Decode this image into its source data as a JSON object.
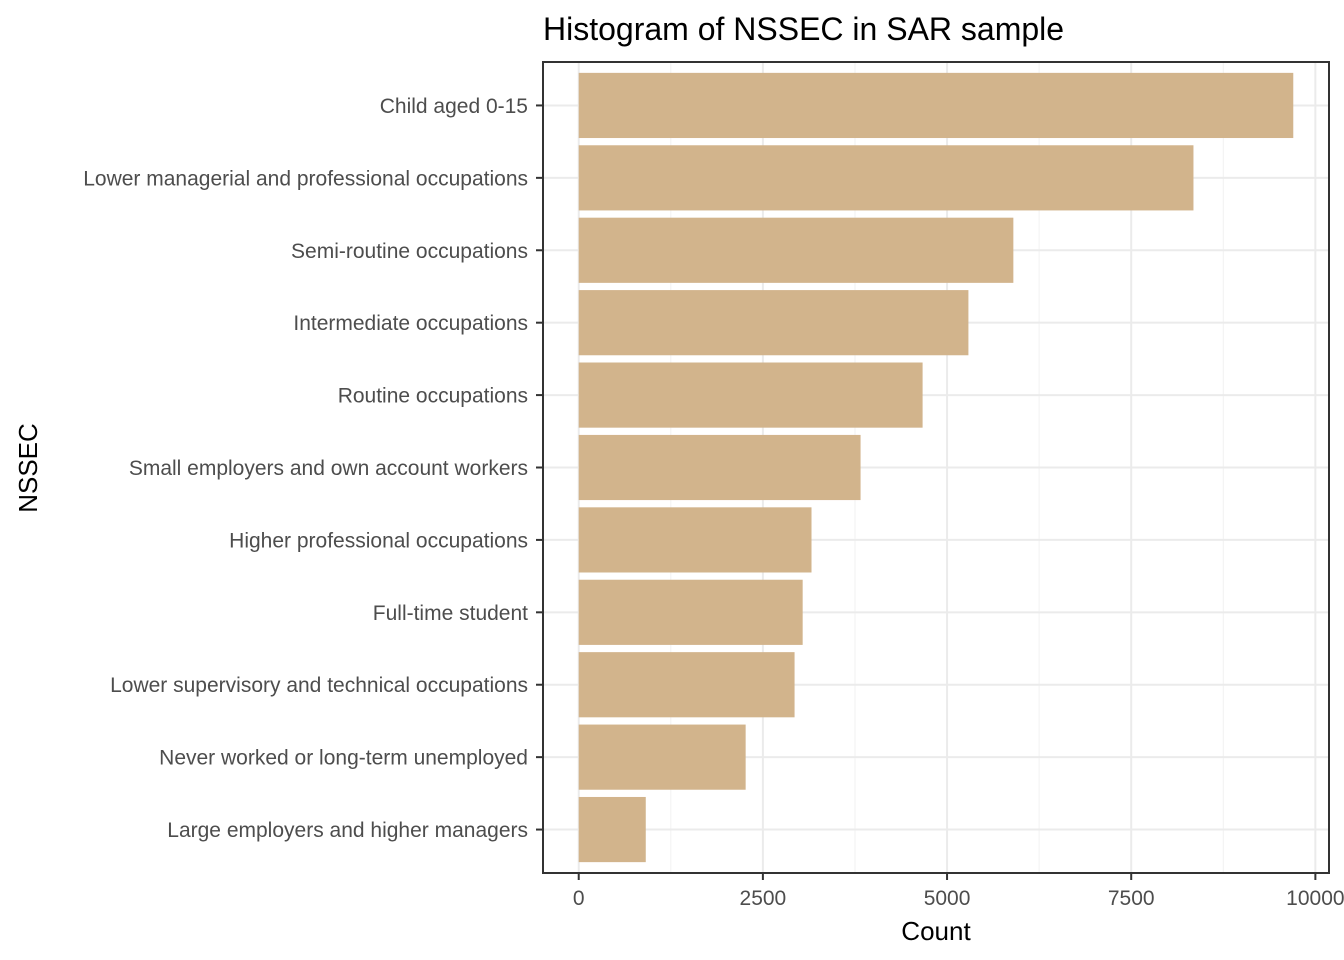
{
  "chart_data": {
    "type": "bar",
    "orientation": "horizontal",
    "title": "Histogram of NSSEC in SAR sample",
    "xlabel": "Count",
    "ylabel": "NSSEC",
    "categories": [
      "Child aged 0-15",
      "Lower managerial and professional occupations",
      "Semi-routine occupations",
      "Intermediate occupations",
      "Routine occupations",
      "Small employers and own account workers",
      "Higher professional occupations",
      "Full-time student",
      "Lower supervisory and technical occupations",
      "Never worked or long-term unemployed",
      "Large employers and higher managers"
    ],
    "values": [
      9700,
      8345,
      5900,
      5290,
      4668,
      3826,
      3160,
      3040,
      2930,
      2266,
      910
    ],
    "xlim": [
      -485,
      10185
    ],
    "x_ticks": [
      0,
      2500,
      5000,
      7500,
      10000
    ],
    "x_tick_labels": [
      "0",
      "2500",
      "5000",
      "7500",
      "10000"
    ],
    "x_minor_ticks": [
      1250,
      3750,
      6250,
      8750
    ],
    "grid": true,
    "legend": "none",
    "colors": {
      "bar_fill": "#D2B48C",
      "grid_major": "#EBEBEB",
      "grid_minor": "#F2F2F2",
      "panel_border": "#333333",
      "tick_label": "#4D4D4D",
      "title": "#000000"
    }
  }
}
